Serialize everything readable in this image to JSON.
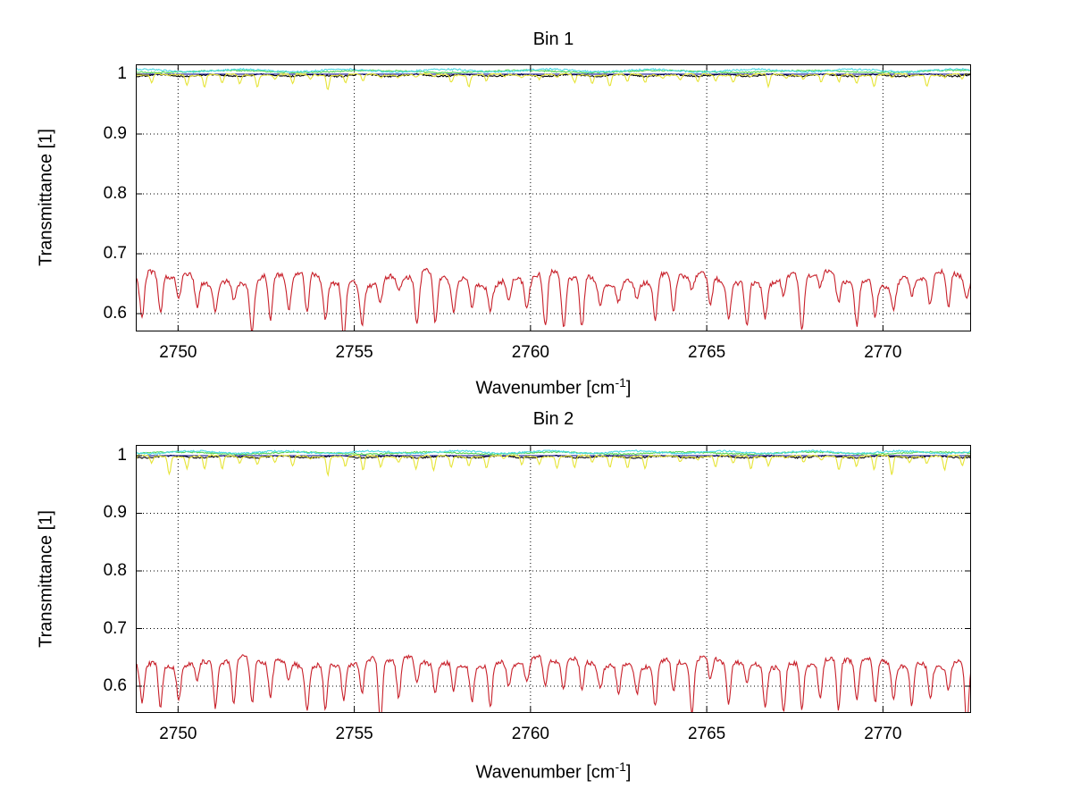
{
  "figure": {
    "background": "#ffffff",
    "grid_color": "#000000",
    "axis_color": "#000000"
  },
  "chart_data": [
    {
      "type": "line",
      "title": "Bin 1",
      "xlabel_main": "Wavenumber [cm",
      "xlabel_sup": "-1",
      "xlabel_close": "]",
      "ylabel": "Transmittance [1]",
      "xlim": [
        2748.8,
        2772.5
      ],
      "ylim": [
        0.5702,
        1.0164
      ],
      "xticks": [
        2750,
        2755,
        2760,
        2765,
        2770
      ],
      "xtick_labels": [
        "2750",
        "2755",
        "2760",
        "2765",
        "2770"
      ],
      "yticks": [
        0.6,
        0.7,
        0.8,
        0.9,
        1
      ],
      "ytick_labels": [
        "0.6",
        "0.7",
        "0.8",
        "0.9",
        "1"
      ],
      "grid": true,
      "legend": null,
      "series": [
        {
          "name": "green-line",
          "color": "#55d655",
          "baseline": 1.0045,
          "jitter": 0.0012,
          "seed": 21,
          "y_range_approx": [
            1.001,
            1.008
          ],
          "waves": [
            {
              "amp": 0.0018,
              "period": 4.1,
              "phase": 1.0
            }
          ]
        },
        {
          "name": "black-line",
          "color": "#000000",
          "baseline": 0.998,
          "jitter": 0.0013,
          "seed": 22,
          "y_range_approx": [
            0.994,
            1.001
          ],
          "waves": [
            {
              "amp": 0.0016,
              "period": 1.45,
              "phase": 0.3
            }
          ]
        },
        {
          "name": "blue-line",
          "color": "#00008c",
          "baseline": 1.0,
          "jitter": 0,
          "seed": 23,
          "y_range_approx": [
            1.0,
            1.0
          ],
          "waves": []
        },
        {
          "name": "cyan-line",
          "color": "#4cd8e2",
          "baseline": 1.006,
          "jitter": 0.0015,
          "seed": 24,
          "y_range_approx": [
            1.002,
            1.01
          ],
          "waves": [
            {
              "amp": 0.0022,
              "period": 2.9,
              "phase": 2.2
            }
          ]
        },
        {
          "name": "yellow-line",
          "color": "#e6e436",
          "baseline": 0.999,
          "jitter": 0.0012,
          "seed": 25,
          "y_range_approx": [
            0.975,
            1.002
          ],
          "waves": [
            {
              "amp": 0.0012,
              "period": 1.9,
              "phase": 0.9
            }
          ],
          "dips": {
            "period": 0.5,
            "min": 0.002,
            "max": 0.02,
            "width": 0.11
          }
        },
        {
          "name": "red-line",
          "color": "#c8202a",
          "baseline": 0.658,
          "jitter": 0.004,
          "seed": 26,
          "y_range_approx": [
            0.57,
            0.68
          ],
          "waves": [
            {
              "amp": 0.009,
              "period": 3.7,
              "phase": 0.8
            },
            {
              "amp": 0.005,
              "period": 1.13,
              "phase": 2.1
            }
          ],
          "dips": {
            "period": 0.52,
            "min": 0.02,
            "max": 0.085,
            "width": 0.16
          }
        }
      ]
    },
    {
      "type": "line",
      "title": "Bin 2",
      "xlabel_main": "Wavenumber [cm",
      "xlabel_sup": "-1",
      "xlabel_close": "]",
      "ylabel": "Transmittance [1]",
      "xlim": [
        2748.8,
        2772.5
      ],
      "ylim": [
        0.5535,
        1.0186
      ],
      "xticks": [
        2750,
        2755,
        2760,
        2765,
        2770
      ],
      "xtick_labels": [
        "2750",
        "2755",
        "2760",
        "2765",
        "2770"
      ],
      "yticks": [
        0.6,
        0.7,
        0.8,
        0.9,
        1
      ],
      "ytick_labels": [
        "0.6",
        "0.7",
        "0.8",
        "0.9",
        "1"
      ],
      "grid": true,
      "legend": null,
      "series": [
        {
          "name": "green-line",
          "color": "#55d655",
          "baseline": 1.0045,
          "jitter": 0.0012,
          "seed": 31,
          "y_range_approx": [
            1.001,
            1.008
          ],
          "waves": [
            {
              "amp": 0.0018,
              "period": 3.6,
              "phase": 2.4
            }
          ]
        },
        {
          "name": "black-line",
          "color": "#000000",
          "baseline": 0.998,
          "jitter": 0.0013,
          "seed": 32,
          "y_range_approx": [
            0.994,
            1.001
          ],
          "waves": [
            {
              "amp": 0.0016,
              "period": 1.55,
              "phase": 1.1
            }
          ]
        },
        {
          "name": "blue-line",
          "color": "#00008c",
          "baseline": 1.0,
          "jitter": 0,
          "seed": 33,
          "y_range_approx": [
            1.0,
            1.0
          ],
          "waves": []
        },
        {
          "name": "cyan-line",
          "color": "#4cd8e2",
          "baseline": 1.006,
          "jitter": 0.0015,
          "seed": 34,
          "y_range_approx": [
            1.002,
            1.01
          ],
          "waves": [
            {
              "amp": 0.0022,
              "period": 2.5,
              "phase": 0.4
            }
          ]
        },
        {
          "name": "yellow-line",
          "color": "#e6e436",
          "baseline": 0.999,
          "jitter": 0.0012,
          "seed": 35,
          "y_range_approx": [
            0.97,
            1.002
          ],
          "waves": [
            {
              "amp": 0.0012,
              "period": 2.1,
              "phase": 1.6
            }
          ],
          "dips": {
            "period": 0.5,
            "min": 0.003,
            "max": 0.026,
            "width": 0.11
          }
        },
        {
          "name": "red-line",
          "color": "#c8202a",
          "baseline": 0.641,
          "jitter": 0.004,
          "seed": 36,
          "y_range_approx": [
            0.55,
            0.655
          ],
          "waves": [
            {
              "amp": 0.006,
              "period": 4.3,
              "phase": 1.7
            },
            {
              "amp": 0.004,
              "period": 1.2,
              "phase": 0.5
            }
          ],
          "dips": {
            "period": 0.52,
            "min": 0.03,
            "max": 0.085,
            "width": 0.15
          }
        }
      ]
    }
  ]
}
